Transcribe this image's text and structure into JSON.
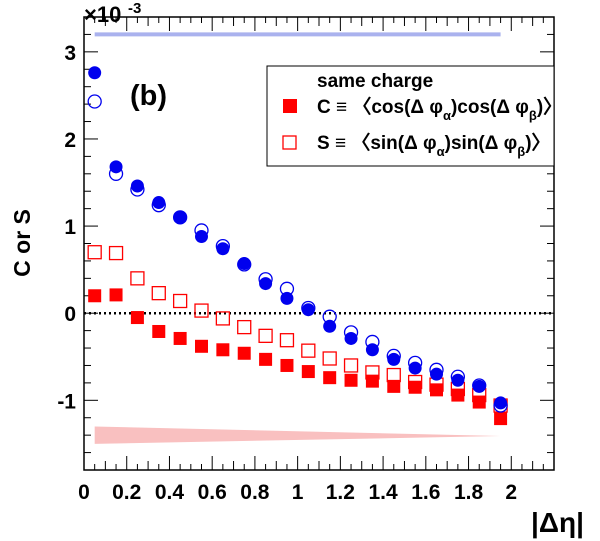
{
  "chart_data": {
    "type": "scatter",
    "panel_label": "(b)",
    "ylabel": "C or S",
    "xlabel": "|Δη|",
    "y_exponent_label": "×10",
    "y_exponent_power": "-3",
    "xlim": [
      0,
      2.2
    ],
    "ylim": [
      -1.8,
      3.4
    ],
    "x_ticks": [
      0,
      0.2,
      0.4,
      0.6,
      0.8,
      1,
      1.2,
      1.4,
      1.6,
      1.8,
      2
    ],
    "x_tick_labels": [
      "0",
      "0.2",
      "0.4",
      "0.6",
      "0.8",
      "1",
      "1.2",
      "1.4",
      "1.6",
      "1.8",
      "2"
    ],
    "y_ticks": [
      -1,
      0,
      1,
      2,
      3
    ],
    "y_tick_labels": [
      "-1",
      "0",
      "1",
      "2",
      "3"
    ],
    "zero_line": true,
    "grid": false,
    "legend": {
      "placement": "top-right",
      "title": "same charge",
      "entries": [
        {
          "symbol": "filled-square",
          "color": "#ff0000",
          "label": "C ≡ 〈cos(Δ φ",
          "sub1": "α",
          "mid": ")cos(Δ φ",
          "sub2": "β",
          "end": ")〉"
        },
        {
          "symbol": "open-square",
          "color": "#ff0000",
          "label": "S ≡ 〈sin(Δ φ",
          "sub1": "α",
          "mid": ")sin(Δ φ",
          "sub2": "β",
          "end": ")〉"
        }
      ]
    },
    "x": [
      0.05,
      0.15,
      0.25,
      0.35,
      0.45,
      0.55,
      0.65,
      0.75,
      0.85,
      0.95,
      1.05,
      1.15,
      1.25,
      1.35,
      1.45,
      1.55,
      1.65,
      1.75,
      1.85,
      1.95
    ],
    "series": [
      {
        "marker": "filled-circle",
        "color": "#0000ee",
        "values": [
          2.76,
          1.68,
          1.46,
          1.27,
          1.1,
          0.88,
          0.74,
          0.57,
          0.34,
          0.17,
          0.04,
          -0.15,
          -0.29,
          -0.42,
          -0.53,
          -0.63,
          -0.7,
          -0.77,
          -0.84,
          -1.03
        ]
      },
      {
        "marker": "open-circle",
        "color": "#0000ee",
        "values": [
          2.43,
          1.6,
          1.42,
          1.24,
          1.1,
          0.95,
          0.77,
          0.56,
          0.39,
          0.28,
          0.06,
          -0.04,
          -0.22,
          -0.33,
          -0.49,
          -0.57,
          -0.65,
          -0.73,
          -0.83,
          -1.06
        ]
      },
      {
        "marker": "filled-square",
        "color": "#ff0000",
        "values": [
          0.2,
          0.21,
          -0.05,
          -0.21,
          -0.29,
          -0.38,
          -0.42,
          -0.46,
          -0.53,
          -0.6,
          -0.67,
          -0.74,
          -0.77,
          -0.78,
          -0.84,
          -0.85,
          -0.88,
          -0.94,
          -1.02,
          -1.21
        ]
      },
      {
        "marker": "open-square",
        "color": "#ff0000",
        "values": [
          0.7,
          0.69,
          0.4,
          0.23,
          0.14,
          0.03,
          -0.06,
          -0.16,
          -0.26,
          -0.31,
          -0.43,
          -0.52,
          -0.6,
          -0.68,
          -0.71,
          -0.79,
          -0.82,
          -0.87,
          -0.94,
          -1.06
        ]
      }
    ],
    "systematic_bands": [
      {
        "color": "#aab2ee",
        "x": [
          0.05,
          1.95
        ],
        "y": [
          3.2,
          3.2
        ]
      },
      {
        "color": "#f9c0c0",
        "x": [
          0.05,
          1.95
        ],
        "upper": [
          -1.3,
          -1.41
        ],
        "lower": [
          -1.5,
          -1.41
        ]
      }
    ]
  }
}
